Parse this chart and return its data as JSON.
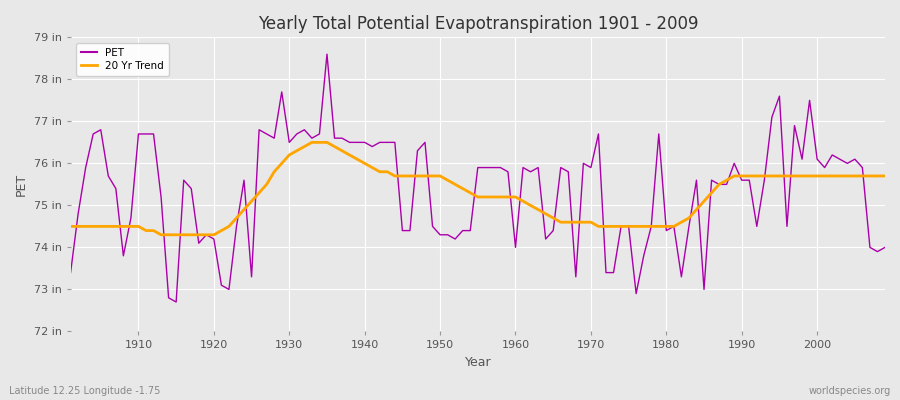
{
  "title": "Yearly Total Potential Evapotranspiration 1901 - 2009",
  "xlabel": "Year",
  "ylabel": "PET",
  "footnote_left": "Latitude 12.25 Longitude -1.75",
  "footnote_right": "worldspecies.org",
  "ylim": [
    72,
    79
  ],
  "xlim": [
    1901,
    2009
  ],
  "ytick_labels": [
    "72 in",
    "73 in",
    "74 in",
    "75 in",
    "76 in",
    "77 in",
    "78 in",
    "79 in"
  ],
  "ytick_values": [
    72,
    73,
    74,
    75,
    76,
    77,
    78,
    79
  ],
  "xtick_values": [
    1910,
    1920,
    1930,
    1940,
    1950,
    1960,
    1970,
    1980,
    1990,
    2000
  ],
  "pet_color": "#AA00AA",
  "trend_color": "#FFA500",
  "bg_color": "#E8E8E8",
  "plot_bg_color": "#E8E8E8",
  "grid_color": "#FFFFFF",
  "pet_values": [
    73.4,
    74.8,
    75.9,
    76.7,
    76.8,
    75.7,
    75.4,
    73.8,
    74.7,
    76.7,
    76.7,
    76.7,
    75.2,
    72.8,
    72.7,
    75.6,
    75.4,
    74.1,
    74.3,
    74.2,
    73.1,
    73.0,
    74.5,
    75.6,
    73.3,
    76.8,
    76.7,
    76.6,
    77.7,
    76.5,
    76.7,
    76.8,
    76.6,
    76.7,
    78.6,
    76.6,
    76.6,
    76.5,
    76.5,
    76.5,
    76.4,
    76.5,
    76.5,
    76.5,
    74.4,
    74.4,
    76.3,
    76.5,
    74.5,
    74.3,
    74.3,
    74.2,
    74.4,
    74.4,
    75.9,
    75.9,
    75.9,
    75.9,
    75.8,
    74.0,
    75.9,
    75.8,
    75.9,
    74.2,
    74.4,
    75.9,
    75.8,
    73.3,
    76.0,
    75.9,
    76.7,
    73.4,
    73.4,
    74.5,
    74.5,
    72.9,
    73.8,
    74.5,
    76.7,
    74.4,
    74.5,
    73.3,
    74.5,
    75.6,
    73.0,
    75.6,
    75.5,
    75.5,
    76.0,
    75.6,
    75.6,
    74.5,
    75.6,
    77.1,
    77.6,
    74.5,
    76.9,
    76.1,
    77.5,
    76.1,
    75.9,
    76.2,
    76.1,
    76.0,
    76.1,
    75.9,
    74.0,
    73.9,
    74.0
  ],
  "trend_values": [
    74.5,
    74.5,
    74.5,
    74.5,
    74.5,
    74.5,
    74.5,
    74.5,
    74.5,
    74.5,
    74.4,
    74.4,
    74.3,
    74.3,
    74.3,
    74.3,
    74.3,
    74.3,
    74.3,
    74.3,
    74.4,
    74.5,
    74.7,
    74.9,
    75.1,
    75.3,
    75.5,
    75.8,
    76.0,
    76.2,
    76.3,
    76.4,
    76.5,
    76.5,
    76.5,
    76.4,
    76.3,
    76.2,
    76.1,
    76.0,
    75.9,
    75.8,
    75.8,
    75.7,
    75.7,
    75.7,
    75.7,
    75.7,
    75.7,
    75.7,
    75.6,
    75.5,
    75.4,
    75.3,
    75.2,
    75.2,
    75.2,
    75.2,
    75.2,
    75.2,
    75.1,
    75.0,
    74.9,
    74.8,
    74.7,
    74.6,
    74.6,
    74.6,
    74.6,
    74.6,
    74.5,
    74.5,
    74.5,
    74.5,
    74.5,
    74.5,
    74.5,
    74.5,
    74.5,
    74.5,
    74.5,
    74.6,
    74.7,
    74.9,
    75.1,
    75.3,
    75.5,
    75.6,
    75.7,
    75.7,
    75.7,
    75.7,
    75.7,
    75.7,
    75.7,
    75.7,
    75.7,
    75.7,
    75.7,
    75.7,
    75.7,
    75.7,
    75.7,
    75.7,
    75.7,
    75.7,
    75.7,
    75.7,
    75.7
  ]
}
